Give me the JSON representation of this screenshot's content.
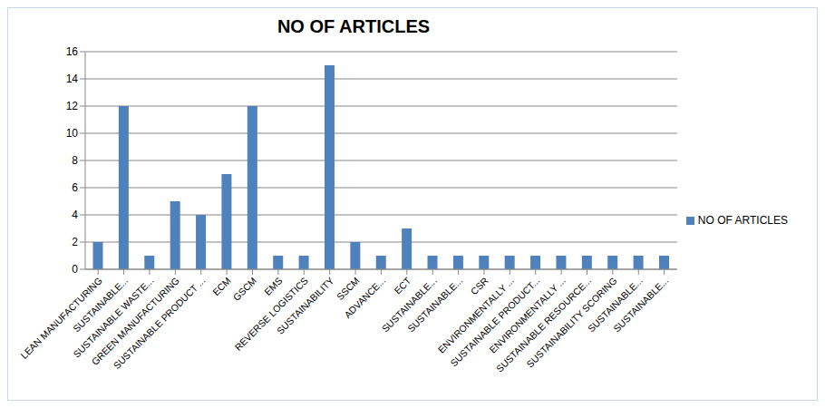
{
  "chart_data": {
    "type": "bar",
    "title": "NO OF ARTICLES",
    "categories": [
      "LEAN MANUFACTURING",
      "SUSTAINABLE...",
      "SUSTAINABLE WASTE...",
      "GREEN MANUFACTURING",
      "SUSTAINABLE PRODUCT ...",
      "ECM",
      "GSCM",
      "EMS",
      "REVERSE LOGISTICS",
      "SUSTAINABILITY",
      "SSCM",
      "ADVANCE...",
      "ECT",
      "SUSTAINABLE...",
      "SUSTAINABLE...",
      "CSR",
      "ENVIRONMENTALLY ...",
      "SUSTAINABLE PRODUCT...",
      "ENVIRONMENTALLY ...",
      "SUSTAINABLE RESOURCE...",
      "SUSTAINABILITY SCORING",
      "SUSTAINABLE...",
      "SUSTAINABLE..."
    ],
    "series": [
      {
        "name": "NO OF ARTICLES",
        "color": "#4f81bd",
        "values": [
          2,
          12,
          1,
          5,
          4,
          7,
          12,
          1,
          1,
          15,
          2,
          1,
          3,
          1,
          1,
          1,
          1,
          1,
          1,
          1,
          1,
          1,
          1
        ]
      }
    ],
    "ylim": [
      0,
      16
    ],
    "yticks": [
      0,
      2,
      4,
      6,
      8,
      10,
      12,
      14,
      16
    ],
    "grid": true,
    "legend": "right"
  }
}
